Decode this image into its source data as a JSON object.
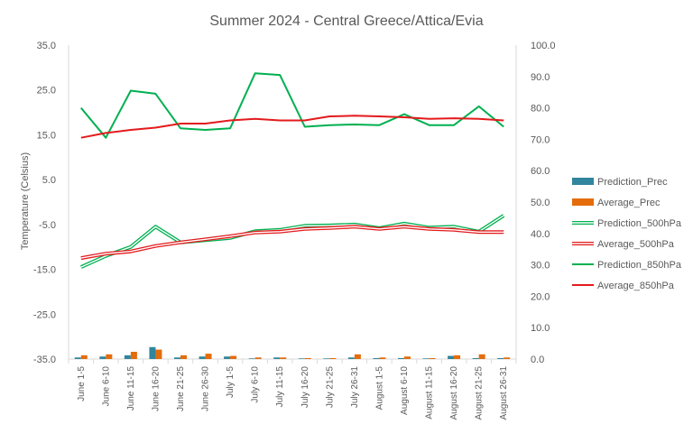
{
  "chart_data": {
    "type": "line",
    "title": "Summer 2024 - Central Greece/Attica/Evia",
    "ylabel": "Temperature (Celsius)",
    "y_left": {
      "ticks": [
        "35.0",
        "25.0",
        "15.0",
        "5.0",
        "-5.0",
        "-15.0",
        "-25.0",
        "-35.0"
      ],
      "lim": [
        -35,
        35
      ]
    },
    "y_right": {
      "ticks": [
        "100.0",
        "90.0",
        "80.0",
        "70.0",
        "60.0",
        "50.0",
        "40.0",
        "30.0",
        "20.0",
        "10.0",
        "0.0"
      ],
      "lim": [
        0,
        100
      ]
    },
    "categories": [
      "June 1-5",
      "June 6-10",
      "June 11-15",
      "June 16-20",
      "June 21-25",
      "June 26-30",
      "July 1-5",
      "July 6-10",
      "July 11-15",
      "July 16-20",
      "July 21-25",
      "July 26-31",
      "August 1-5",
      "August 6-10",
      "August 11-15",
      "August 16-20",
      "August 21-25",
      "August 26-31"
    ],
    "series": [
      {
        "name": "Prediction_Prec",
        "kind": "bar",
        "axis": "right",
        "color": "#31859c",
        "values": [
          0.5,
          0.8,
          1.2,
          3.8,
          0.5,
          0.8,
          0.8,
          0.2,
          0.5,
          0.2,
          0.2,
          0.5,
          0.3,
          0.3,
          0.2,
          1.0,
          0.3,
          0.3
        ]
      },
      {
        "name": "Average_Prec",
        "kind": "bar",
        "axis": "right",
        "color": "#e46c0a",
        "values": [
          1.2,
          1.5,
          2.3,
          3.0,
          1.2,
          1.7,
          1.0,
          0.5,
          0.5,
          0.3,
          0.3,
          1.5,
          0.5,
          0.8,
          0.3,
          1.2,
          1.5,
          0.5
        ]
      },
      {
        "name": "Prediction_500hPa",
        "kind": "double-line",
        "axis": "left",
        "color": "#00b050",
        "values": [
          -14.5,
          -12.0,
          -10.0,
          -5.5,
          -9.0,
          -8.5,
          -8.0,
          -6.5,
          -6.2,
          -5.3,
          -5.2,
          -5.0,
          -5.8,
          -4.8,
          -5.7,
          -5.5,
          -6.6,
          -3.0
        ]
      },
      {
        "name": "Average_500hPa",
        "kind": "double-line",
        "axis": "left",
        "color": "#e31a1c",
        "values": [
          -12.5,
          -11.5,
          -11.0,
          -9.8,
          -9.0,
          -8.3,
          -7.6,
          -6.8,
          -6.6,
          -6.0,
          -5.8,
          -5.5,
          -6.0,
          -5.5,
          -6.0,
          -6.2,
          -6.7,
          -6.7
        ]
      },
      {
        "name": "Prediction_850hPa",
        "kind": "line",
        "axis": "right",
        "color": "#00b050",
        "values": [
          80.0,
          70.5,
          85.5,
          84.5,
          73.5,
          73.0,
          73.5,
          91.0,
          90.5,
          74.0,
          74.5,
          74.7,
          74.5,
          78.0,
          74.5,
          74.5,
          80.5,
          74.0
        ]
      },
      {
        "name": "Average_850hPa",
        "kind": "line",
        "axis": "right",
        "color": "#e31a1c",
        "values": [
          70.5,
          72.0,
          73.0,
          73.7,
          75.0,
          75.0,
          76.0,
          76.5,
          76.0,
          76.0,
          77.3,
          77.5,
          77.3,
          77.0,
          76.5,
          76.7,
          76.5,
          76.0
        ]
      }
    ],
    "legend": {
      "position": "right"
    },
    "grid": false
  }
}
